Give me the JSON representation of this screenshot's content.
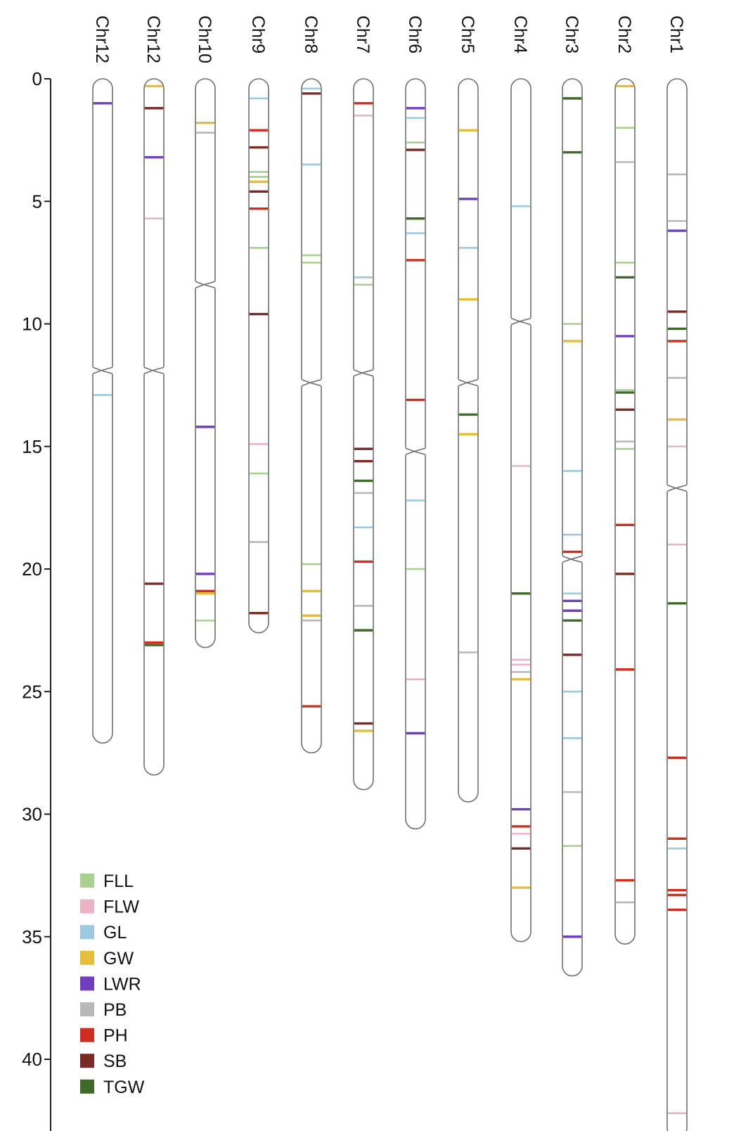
{
  "chart_data": {
    "type": "chromosome-map",
    "y_axis": {
      "min": 0,
      "max": 42,
      "ticks": [
        0,
        5,
        10,
        15,
        20,
        25,
        30,
        35,
        40
      ]
    },
    "traits": [
      {
        "code": "FLL",
        "color": "#a9d18e"
      },
      {
        "code": "FLW",
        "color": "#ebb4c4"
      },
      {
        "code": "GL",
        "color": "#9ec9e2"
      },
      {
        "code": "GW",
        "color": "#e5bd3a"
      },
      {
        "code": "LWR",
        "color": "#6f3fbf"
      },
      {
        "code": "PB",
        "color": "#b8b8b8"
      },
      {
        "code": "PH",
        "color": "#cf2e1e"
      },
      {
        "code": "SB",
        "color": "#7a2a24"
      },
      {
        "code": "TGW",
        "color": "#3f6a2a"
      }
    ],
    "chromosomes": [
      {
        "name": "Chr12",
        "length": 27.1,
        "centromere": 11.9,
        "markers": [
          {
            "pos": 1.0,
            "trait": "LWR"
          },
          {
            "pos": 12.9,
            "trait": "GL"
          }
        ]
      },
      {
        "name": "Chr12",
        "length": 28.4,
        "centromere": 11.9,
        "markers": [
          {
            "pos": 0.3,
            "trait": "GW"
          },
          {
            "pos": 1.2,
            "trait": "SB"
          },
          {
            "pos": 3.2,
            "trait": "LWR"
          },
          {
            "pos": 5.7,
            "trait": "FLW"
          },
          {
            "pos": 20.6,
            "trait": "SB"
          },
          {
            "pos": 23.0,
            "trait": "PH"
          },
          {
            "pos": 23.1,
            "trait": "TGW"
          }
        ]
      },
      {
        "name": "Chr10",
        "length": 23.2,
        "centromere": 8.4,
        "markers": [
          {
            "pos": 1.8,
            "trait": "GW"
          },
          {
            "pos": 2.2,
            "trait": "PB"
          },
          {
            "pos": 14.2,
            "trait": "LWR"
          },
          {
            "pos": 20.2,
            "trait": "LWR"
          },
          {
            "pos": 20.9,
            "trait": "PH"
          },
          {
            "pos": 21.0,
            "trait": "GW"
          },
          {
            "pos": 22.1,
            "trait": "FLL"
          }
        ]
      },
      {
        "name": "Chr9",
        "length": 22.6,
        "centromere": null,
        "markers": [
          {
            "pos": 0.8,
            "trait": "GL"
          },
          {
            "pos": 2.1,
            "trait": "PH"
          },
          {
            "pos": 2.8,
            "trait": "SB"
          },
          {
            "pos": 3.8,
            "trait": "FLL"
          },
          {
            "pos": 4.0,
            "trait": "FLL"
          },
          {
            "pos": 4.2,
            "trait": "GW"
          },
          {
            "pos": 4.6,
            "trait": "SB"
          },
          {
            "pos": 5.3,
            "trait": "PH"
          },
          {
            "pos": 6.9,
            "trait": "FLL"
          },
          {
            "pos": 9.6,
            "trait": "SB"
          },
          {
            "pos": 14.9,
            "trait": "FLW"
          },
          {
            "pos": 16.1,
            "trait": "FLL"
          },
          {
            "pos": 18.9,
            "trait": "PB"
          },
          {
            "pos": 21.8,
            "trait": "SB"
          }
        ]
      },
      {
        "name": "Chr8",
        "length": 27.5,
        "centromere": 12.4,
        "markers": [
          {
            "pos": 0.4,
            "trait": "GL"
          },
          {
            "pos": 0.6,
            "trait": "SB"
          },
          {
            "pos": 3.5,
            "trait": "GL"
          },
          {
            "pos": 7.2,
            "trait": "FLL"
          },
          {
            "pos": 7.5,
            "trait": "FLL"
          },
          {
            "pos": 19.8,
            "trait": "FLL"
          },
          {
            "pos": 20.9,
            "trait": "GW"
          },
          {
            "pos": 21.9,
            "trait": "GW"
          },
          {
            "pos": 22.1,
            "trait": "PB"
          },
          {
            "pos": 25.6,
            "trait": "PH"
          }
        ]
      },
      {
        "name": "Chr7",
        "length": 29.0,
        "centromere": 12.0,
        "markers": [
          {
            "pos": 1.0,
            "trait": "PH"
          },
          {
            "pos": 1.5,
            "trait": "FLW"
          },
          {
            "pos": 8.1,
            "trait": "GL"
          },
          {
            "pos": 8.4,
            "trait": "FLL"
          },
          {
            "pos": 15.1,
            "trait": "SB"
          },
          {
            "pos": 15.6,
            "trait": "SB"
          },
          {
            "pos": 16.4,
            "trait": "TGW"
          },
          {
            "pos": 16.9,
            "trait": "PB"
          },
          {
            "pos": 18.3,
            "trait": "GL"
          },
          {
            "pos": 19.7,
            "trait": "PH"
          },
          {
            "pos": 21.5,
            "trait": "PB"
          },
          {
            "pos": 22.5,
            "trait": "TGW"
          },
          {
            "pos": 26.3,
            "trait": "SB"
          },
          {
            "pos": 26.6,
            "trait": "GW"
          }
        ]
      },
      {
        "name": "Chr6",
        "length": 30.6,
        "centromere": 15.2,
        "markers": [
          {
            "pos": 1.2,
            "trait": "LWR"
          },
          {
            "pos": 1.6,
            "trait": "GL"
          },
          {
            "pos": 2.6,
            "trait": "FLL"
          },
          {
            "pos": 2.9,
            "trait": "SB"
          },
          {
            "pos": 5.7,
            "trait": "TGW"
          },
          {
            "pos": 6.3,
            "trait": "GL"
          },
          {
            "pos": 7.4,
            "trait": "PH"
          },
          {
            "pos": 13.1,
            "trait": "PH"
          },
          {
            "pos": 17.2,
            "trait": "GL"
          },
          {
            "pos": 20.0,
            "trait": "FLL"
          },
          {
            "pos": 24.5,
            "trait": "FLW"
          },
          {
            "pos": 26.7,
            "trait": "LWR"
          }
        ]
      },
      {
        "name": "Chr5",
        "length": 29.5,
        "centromere": 12.4,
        "markers": [
          {
            "pos": 2.1,
            "trait": "GW"
          },
          {
            "pos": 4.9,
            "trait": "LWR"
          },
          {
            "pos": 6.9,
            "trait": "GL"
          },
          {
            "pos": 9.0,
            "trait": "GW"
          },
          {
            "pos": 13.7,
            "trait": "TGW"
          },
          {
            "pos": 14.5,
            "trait": "GW"
          },
          {
            "pos": 23.4,
            "trait": "PB"
          }
        ]
      },
      {
        "name": "Chr4",
        "length": 35.2,
        "centromere": 9.9,
        "markers": [
          {
            "pos": 5.2,
            "trait": "GL"
          },
          {
            "pos": 15.8,
            "trait": "FLW"
          },
          {
            "pos": 21.0,
            "trait": "TGW"
          },
          {
            "pos": 23.7,
            "trait": "FLW"
          },
          {
            "pos": 23.9,
            "trait": "FLW"
          },
          {
            "pos": 24.2,
            "trait": "PB"
          },
          {
            "pos": 24.5,
            "trait": "GW"
          },
          {
            "pos": 29.8,
            "trait": "LWR"
          },
          {
            "pos": 30.5,
            "trait": "PH"
          },
          {
            "pos": 30.8,
            "trait": "FLW"
          },
          {
            "pos": 31.4,
            "trait": "SB"
          },
          {
            "pos": 33.0,
            "trait": "GW"
          }
        ]
      },
      {
        "name": "Chr3",
        "length": 36.6,
        "centromere": 19.6,
        "markers": [
          {
            "pos": 0.8,
            "trait": "TGW"
          },
          {
            "pos": 3.0,
            "trait": "TGW"
          },
          {
            "pos": 10.0,
            "trait": "FLL"
          },
          {
            "pos": 10.7,
            "trait": "GW"
          },
          {
            "pos": 16.0,
            "trait": "GL"
          },
          {
            "pos": 18.6,
            "trait": "GL"
          },
          {
            "pos": 19.3,
            "trait": "PH"
          },
          {
            "pos": 21.0,
            "trait": "GL"
          },
          {
            "pos": 21.3,
            "trait": "LWR"
          },
          {
            "pos": 21.7,
            "trait": "LWR"
          },
          {
            "pos": 22.1,
            "trait": "TGW"
          },
          {
            "pos": 23.5,
            "trait": "SB"
          },
          {
            "pos": 25.0,
            "trait": "GL"
          },
          {
            "pos": 26.9,
            "trait": "GL"
          },
          {
            "pos": 29.1,
            "trait": "PB"
          },
          {
            "pos": 31.3,
            "trait": "FLL"
          },
          {
            "pos": 35.0,
            "trait": "LWR"
          }
        ]
      },
      {
        "name": "Chr2",
        "length": 35.3,
        "centromere": null,
        "markers": [
          {
            "pos": 0.3,
            "trait": "GW"
          },
          {
            "pos": 2.0,
            "trait": "FLL"
          },
          {
            "pos": 3.4,
            "trait": "PB"
          },
          {
            "pos": 7.5,
            "trait": "FLL"
          },
          {
            "pos": 8.1,
            "trait": "TGW"
          },
          {
            "pos": 10.5,
            "trait": "LWR"
          },
          {
            "pos": 12.7,
            "trait": "FLL"
          },
          {
            "pos": 12.8,
            "trait": "TGW"
          },
          {
            "pos": 13.5,
            "trait": "SB"
          },
          {
            "pos": 14.8,
            "trait": "PB"
          },
          {
            "pos": 15.1,
            "trait": "FLL"
          },
          {
            "pos": 18.2,
            "trait": "PH"
          },
          {
            "pos": 20.2,
            "trait": "SB"
          },
          {
            "pos": 24.1,
            "trait": "PH"
          },
          {
            "pos": 32.7,
            "trait": "PH"
          },
          {
            "pos": 33.6,
            "trait": "PB"
          }
        ]
      },
      {
        "name": "Chr1",
        "length": 43.2,
        "centromere": 16.7,
        "markers": [
          {
            "pos": 3.9,
            "trait": "PB"
          },
          {
            "pos": 5.8,
            "trait": "PB"
          },
          {
            "pos": 6.2,
            "trait": "LWR"
          },
          {
            "pos": 9.5,
            "trait": "SB"
          },
          {
            "pos": 10.2,
            "trait": "TGW"
          },
          {
            "pos": 10.7,
            "trait": "PH"
          },
          {
            "pos": 12.2,
            "trait": "PB"
          },
          {
            "pos": 13.9,
            "trait": "GW"
          },
          {
            "pos": 15.0,
            "trait": "FLW"
          },
          {
            "pos": 19.0,
            "trait": "FLW"
          },
          {
            "pos": 21.4,
            "trait": "TGW"
          },
          {
            "pos": 27.7,
            "trait": "PH"
          },
          {
            "pos": 31.0,
            "trait": "PH"
          },
          {
            "pos": 31.4,
            "trait": "GL"
          },
          {
            "pos": 33.1,
            "trait": "PH"
          },
          {
            "pos": 33.3,
            "trait": "PH"
          },
          {
            "pos": 33.9,
            "trait": "PH"
          },
          {
            "pos": 42.2,
            "trait": "FLW"
          }
        ]
      }
    ]
  }
}
